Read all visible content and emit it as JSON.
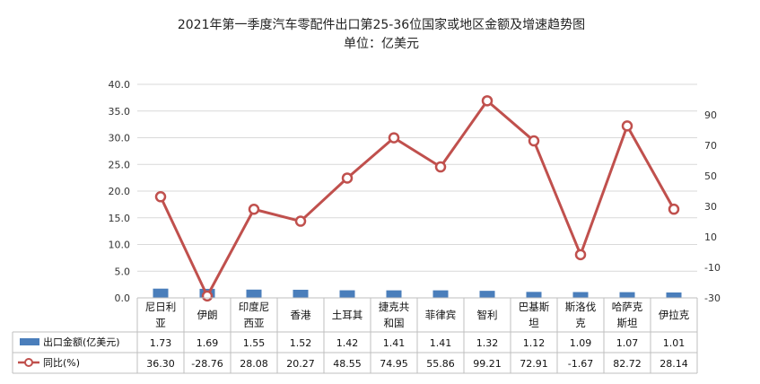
{
  "colors": {
    "bar": "#4a7ebb",
    "line": "#c0504d",
    "marker_fill": "#ffffff"
  },
  "chart_data": {
    "type": "bar",
    "title": "2021年第一季度汽车零配件出口第25-36位国家或地区金额及增速趋势图",
    "subtitle": "单位：亿美元",
    "categories": [
      [
        "尼日利",
        "亚"
      ],
      [
        "伊朗"
      ],
      [
        "印度尼",
        "西亚"
      ],
      [
        "香港"
      ],
      [
        "土耳其"
      ],
      [
        "捷克共",
        "和国"
      ],
      [
        "菲律宾"
      ],
      [
        "智利"
      ],
      [
        "巴基斯",
        "坦"
      ],
      [
        "斯洛伐",
        "克"
      ],
      [
        "哈萨克",
        "斯坦"
      ],
      [
        "伊拉克"
      ]
    ],
    "series": [
      {
        "name": "出口金额(亿美元)",
        "type": "bar",
        "axis": "left",
        "values": [
          1.73,
          1.69,
          1.55,
          1.52,
          1.42,
          1.41,
          1.41,
          1.32,
          1.12,
          1.09,
          1.07,
          1.01
        ],
        "labels": [
          "1.73",
          "1.69",
          "1.55",
          "1.52",
          "1.42",
          "1.41",
          "1.41",
          "1.32",
          "1.12",
          "1.09",
          "1.07",
          "1.01"
        ]
      },
      {
        "name": "同比(%)",
        "type": "line",
        "axis": "right",
        "values": [
          36.3,
          -28.76,
          28.08,
          20.27,
          48.55,
          74.95,
          55.86,
          99.21,
          72.91,
          -1.67,
          82.72,
          28.14
        ],
        "labels": [
          "36.30",
          "-28.76",
          "28.08",
          "20.27",
          "48.55",
          "74.95",
          "55.86",
          "99.21",
          "72.91",
          "-1.67",
          "82.72",
          "28.14"
        ]
      }
    ],
    "y_left": {
      "range": [
        0,
        40
      ],
      "ticks": [
        0,
        5,
        10,
        15,
        20,
        25,
        30,
        35,
        40
      ],
      "tick_labels": [
        "0.0",
        "5.0",
        "10.0",
        "15.0",
        "20.0",
        "25.0",
        "30.0",
        "35.0",
        "40.0"
      ]
    },
    "y_right": {
      "range": [
        -30,
        110
      ],
      "ticks": [
        -30,
        -10,
        10,
        30,
        50,
        70,
        90
      ],
      "tick_labels": [
        "-30",
        "-10",
        "10",
        "30",
        "50",
        "70",
        "90"
      ]
    },
    "grid": true,
    "legend": "data-table"
  }
}
